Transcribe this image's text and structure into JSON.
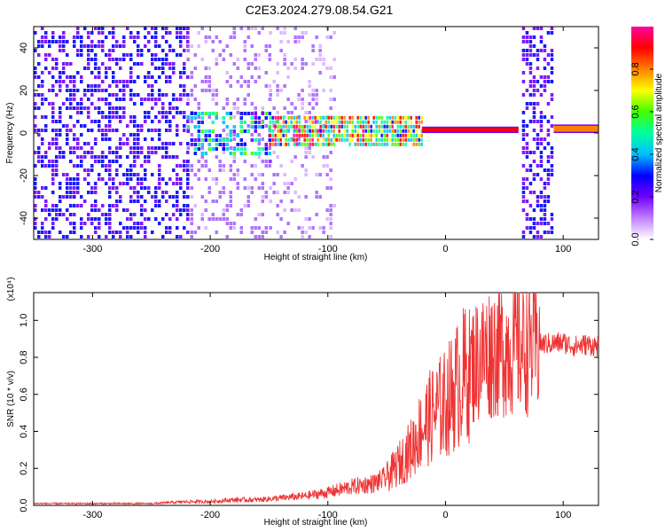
{
  "title": "C2E3.2024.279.08.54.G21",
  "chart_data": [
    {
      "type": "heatmap",
      "xlabel": "Height of straight line (km)",
      "ylabel": "Frequency (Hz)",
      "xlim": [
        -350,
        130
      ],
      "ylim": [
        -50,
        50
      ],
      "x_ticks": [
        -300,
        -200,
        -100,
        0,
        100
      ],
      "y_ticks": [
        -40,
        -20,
        0,
        20,
        40
      ],
      "colorbar": {
        "label": "Normalized spectral amplitude",
        "range": [
          0,
          1
        ],
        "ticks": [
          "0.0",
          "0.2",
          "0.4",
          "0.6",
          "0.8"
        ],
        "colors": [
          "#ffffff",
          "#c080ff",
          "#7000ff",
          "#0000ff",
          "#00c0ff",
          "#00ffa0",
          "#40ff00",
          "#ffff00",
          "#ff8000",
          "#ff0000",
          "#ff00a0"
        ]
      },
      "regions": [
        {
          "x": [
            -350,
            -220
          ],
          "freq": [
            -50,
            50
          ],
          "amplitude": 0.15
        },
        {
          "x": [
            -220,
            -150
          ],
          "freq": [
            -50,
            50
          ],
          "amplitude": 0.08
        },
        {
          "x": [
            -150,
            -95
          ],
          "freq": [
            -50,
            50
          ],
          "amplitude": 0.05
        },
        {
          "x": [
            -220,
            -150
          ],
          "freq": [
            -10,
            10
          ],
          "amplitude": 0.3
        },
        {
          "x": [
            -150,
            -20
          ],
          "freq": [
            -6,
            8
          ],
          "amplitude": 0.55
        },
        {
          "x": [
            -20,
            62
          ],
          "freq": [
            0,
            3
          ],
          "amplitude": 0.9
        },
        {
          "x": [
            65,
            90
          ],
          "freq": [
            -50,
            50
          ],
          "amplitude": 0.15
        },
        {
          "x": [
            92,
            130
          ],
          "freq": [
            0,
            4
          ],
          "amplitude": 0.8
        }
      ]
    },
    {
      "type": "line",
      "xlabel": "Height of straight line (km)",
      "ylabel": "SNR (10 * v/v)",
      "exponent_label": "(x10⁴)",
      "xlim": [
        -350,
        130
      ],
      "ylim": [
        0,
        1.15
      ],
      "x_ticks": [
        -300,
        -200,
        -100,
        0,
        100
      ],
      "y_ticks": [
        "0.0",
        "0.2",
        "0.4",
        "0.6",
        "0.8",
        "1.0"
      ],
      "series": [
        {
          "color": "#ee3333",
          "x": [
            -350,
            -300,
            -250,
            -220,
            -200,
            -180,
            -160,
            -140,
            -120,
            -100,
            -80,
            -60,
            -50,
            -40,
            -30,
            -20,
            -10,
            0,
            10,
            20,
            30,
            40,
            60,
            80,
            100,
            110,
            120,
            130
          ],
          "y": [
            0.01,
            0.01,
            0.01,
            0.02,
            0.02,
            0.03,
            0.03,
            0.04,
            0.05,
            0.07,
            0.1,
            0.12,
            0.15,
            0.22,
            0.3,
            0.42,
            0.5,
            0.55,
            0.65,
            0.74,
            0.8,
            0.84,
            0.86,
            0.87,
            0.88,
            0.86,
            0.87,
            0.86
          ]
        }
      ]
    }
  ]
}
